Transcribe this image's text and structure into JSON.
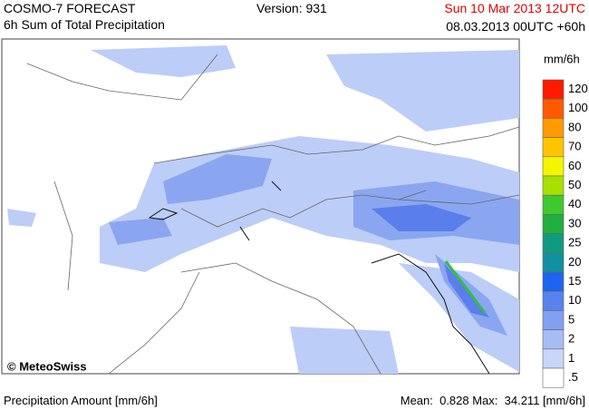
{
  "header": {
    "title": "COSMO-7 FORECAST",
    "subtitle": "6h Sum of Total Precipitation",
    "version": "Version: 931",
    "valid_time": "Sun 10 Mar 2013 12UTC",
    "run": "08.03.2013 00UTC +60h"
  },
  "map": {
    "copyright": "© MeteoSwiss"
  },
  "legend": {
    "unit": "mm/6h",
    "items": [
      {
        "label": "120",
        "color": "#ff1a00"
      },
      {
        "label": "100",
        "color": "#ff5a00"
      },
      {
        "label": "80",
        "color": "#ff9a00"
      },
      {
        "label": "70",
        "color": "#ffc400"
      },
      {
        "label": "60",
        "color": "#f5f500"
      },
      {
        "label": "50",
        "color": "#a8e000"
      },
      {
        "label": "40",
        "color": "#40c830"
      },
      {
        "label": "30",
        "color": "#20b040"
      },
      {
        "label": "25",
        "color": "#109a80"
      },
      {
        "label": "20",
        "color": "#1090a0"
      },
      {
        "label": "15",
        "color": "#1e64f0"
      },
      {
        "label": "10",
        "color": "#5a82ee"
      },
      {
        "label": "5",
        "color": "#82a0f2"
      },
      {
        "label": "2",
        "color": "#a6bcf5"
      },
      {
        "label": "1",
        "color": "#c8d6fa"
      },
      {
        "label": ".5",
        "color": "#ffffff"
      }
    ]
  },
  "footer": {
    "left": "Precipitation Amount [mm/6h]",
    "right": "Mean:  0.828 Max:  34.211 [mm/6h]"
  }
}
